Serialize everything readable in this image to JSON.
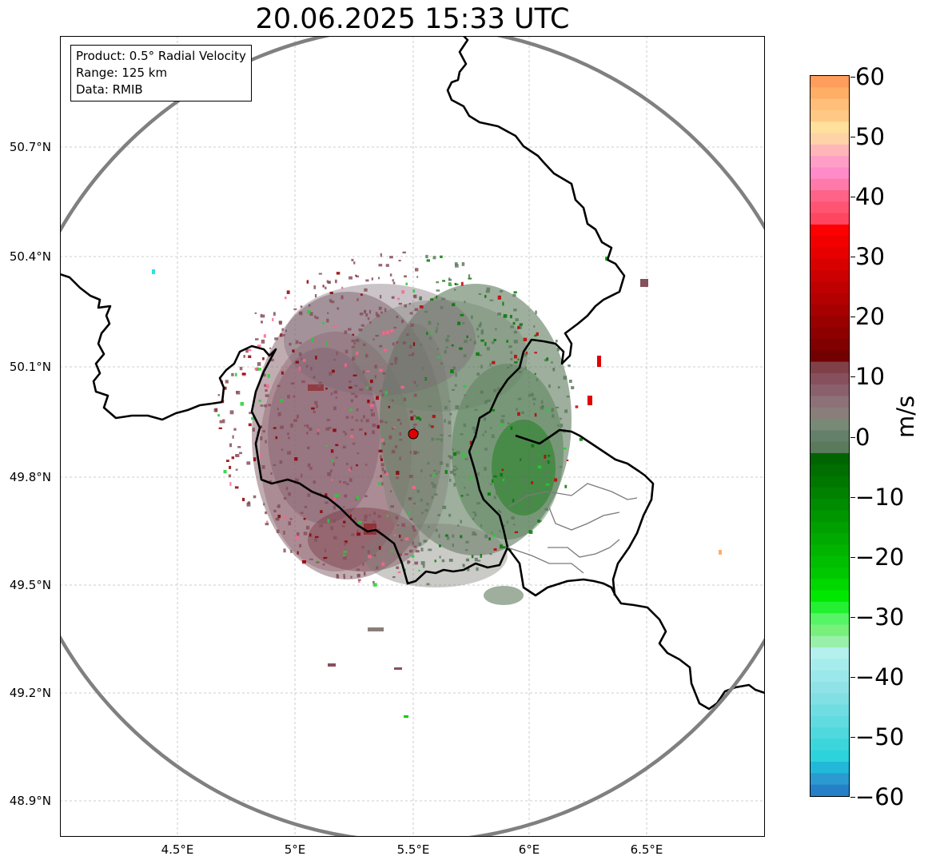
{
  "title": "20.06.2025 15:33 UTC",
  "info_lines": [
    "Product: 0.5° Radial Velocity",
    "Range: 125 km",
    "Data: RMIB"
  ],
  "lat_ticks": [
    "50.7°N",
    "50.4°N",
    "50.1°N",
    "49.8°N",
    "49.5°N",
    "49.2°N",
    "48.9°N"
  ],
  "lon_ticks": [
    "4.5°E",
    "5°E",
    "5.5°E",
    "6°E",
    "6.5°E"
  ],
  "colorbar": {
    "unit": "m/s",
    "ticks": [
      "60",
      "50",
      "40",
      "30",
      "20",
      "10",
      "0",
      "−10",
      "−20",
      "−30",
      "−40",
      "−50",
      "−60"
    ],
    "colors_top_to_bottom": [
      "#ff9d5c",
      "#ffae66",
      "#ffbf78",
      "#ffc985",
      "#ffe19b",
      "#ffd3a8",
      "#ffb6b8",
      "#ff9ec6",
      "#ff8cc9",
      "#ff7aa8",
      "#ff6388",
      "#ff5572",
      "#ff4660",
      "#ff0000",
      "#f20000",
      "#e60000",
      "#d90000",
      "#cc0000",
      "#bf0000",
      "#b30000",
      "#a60000",
      "#990000",
      "#8c0000",
      "#800000",
      "#730000",
      "#804048",
      "#86505c",
      "#8a606c",
      "#8c7278",
      "#8a7e7a",
      "#788a76",
      "#65806a",
      "#5a7a5c",
      "#006400",
      "#006e00",
      "#007800",
      "#008200",
      "#008c00",
      "#009600",
      "#00a000",
      "#00aa00",
      "#00b400",
      "#00be00",
      "#00c800",
      "#00d800",
      "#00e800",
      "#22f030",
      "#55f566",
      "#77f07c",
      "#99f0aa",
      "#b3f0ee",
      "#a6ecec",
      "#9be8ea",
      "#8fe3e6",
      "#80e0e4",
      "#70dde2",
      "#60dbe0",
      "#4fd8de",
      "#3bd6dc",
      "#2cd3db",
      "#22b8d8",
      "#2a9ad0",
      "#2680c8"
    ]
  },
  "radar_site": {
    "lon": 5.5,
    "lat": 49.91
  },
  "colors": {
    "approaching_green": "#5e7a5e",
    "receding_red": "#86505c",
    "strong_green": "#007a00",
    "strong_red": "#b00000",
    "site_marker": "#e00000",
    "range_ring": "#808080"
  }
}
